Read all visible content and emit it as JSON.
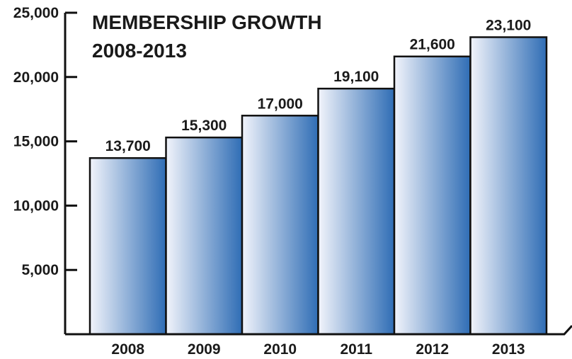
{
  "chart_data": {
    "type": "bar",
    "title": "MEMBERSHIP GROWTH",
    "subtitle": "2008-2013",
    "categories": [
      "2008",
      "2009",
      "2010",
      "2011",
      "2012",
      "2013"
    ],
    "values": [
      13700,
      15300,
      17000,
      19100,
      21600,
      23100
    ],
    "value_labels": [
      "13,700",
      "15,300",
      "17,000",
      "19,100",
      "21,600",
      "23,100"
    ],
    "yticks": [
      5000,
      10000,
      15000,
      20000,
      25000
    ],
    "ytick_labels": [
      "5,000",
      "10,000",
      "15,000",
      "20,000",
      "25,000"
    ],
    "ylim": [
      0,
      25000
    ],
    "xlabel": "",
    "ylabel": "",
    "grid": false,
    "legend": "none",
    "colors": {
      "bar_light": "#f2f4fb",
      "bar_dark": "#2f6db5",
      "outline": "#111111"
    }
  }
}
